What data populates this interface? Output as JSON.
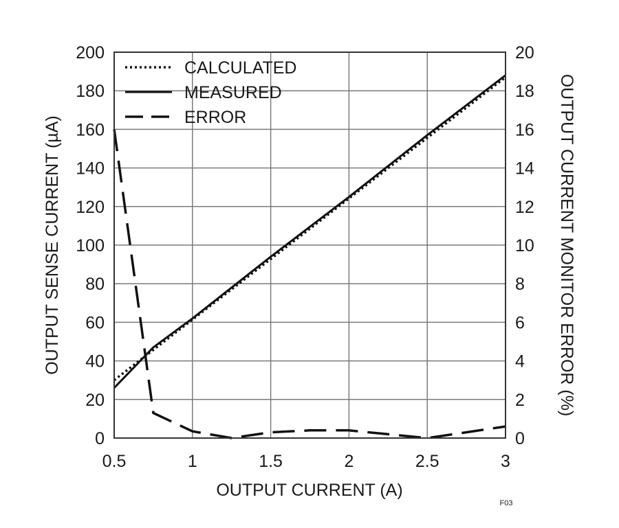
{
  "chart_data": {
    "type": "line",
    "title": "",
    "xlabel": "OUTPUT CURRENT (A)",
    "ylabel_left": "OUTPUT SENSE CURRENT (µA)",
    "ylabel_right": "OUTPUT CURRENT MONITOR ERROR (%)",
    "xlim": [
      0.5,
      3
    ],
    "ylim_left": [
      0,
      200
    ],
    "ylim_right": [
      0,
      20
    ],
    "x_ticks": [
      "0.5",
      "1",
      "1.5",
      "2",
      "2.5",
      "3"
    ],
    "y_ticks_left": [
      "0",
      "20",
      "40",
      "60",
      "80",
      "100",
      "120",
      "140",
      "160",
      "180",
      "200"
    ],
    "y_ticks_right": [
      "0",
      "2",
      "4",
      "6",
      "8",
      "10",
      "12",
      "14",
      "16",
      "18",
      "20"
    ],
    "x_tick_values": [
      0.5,
      1,
      1.5,
      2,
      2.5,
      3
    ],
    "y_tick_values_left": [
      0,
      20,
      40,
      60,
      80,
      100,
      120,
      140,
      160,
      180,
      200
    ],
    "grid": true,
    "legend_position": "top-left",
    "series": [
      {
        "name": "CALCULATED",
        "axis": "left",
        "style": "dotted",
        "x": [
          0.5,
          3
        ],
        "y": [
          30,
          187
        ]
      },
      {
        "name": "MEASURED",
        "axis": "left",
        "style": "solid",
        "x": [
          0.5,
          0.75,
          1,
          1.5,
          2,
          2.5,
          3
        ],
        "y": [
          26,
          47,
          62,
          94,
          125,
          157,
          188
        ]
      },
      {
        "name": "ERROR",
        "axis": "right",
        "style": "dashed",
        "x": [
          0.5,
          0.75,
          1,
          1.25,
          1.5,
          1.75,
          2,
          2.25,
          2.5,
          2.75,
          3
        ],
        "y": [
          16,
          1.3,
          0.35,
          0.0,
          0.3,
          0.4,
          0.4,
          0.2,
          0.0,
          0.3,
          0.6
        ]
      }
    ],
    "figure_id": "F03"
  }
}
